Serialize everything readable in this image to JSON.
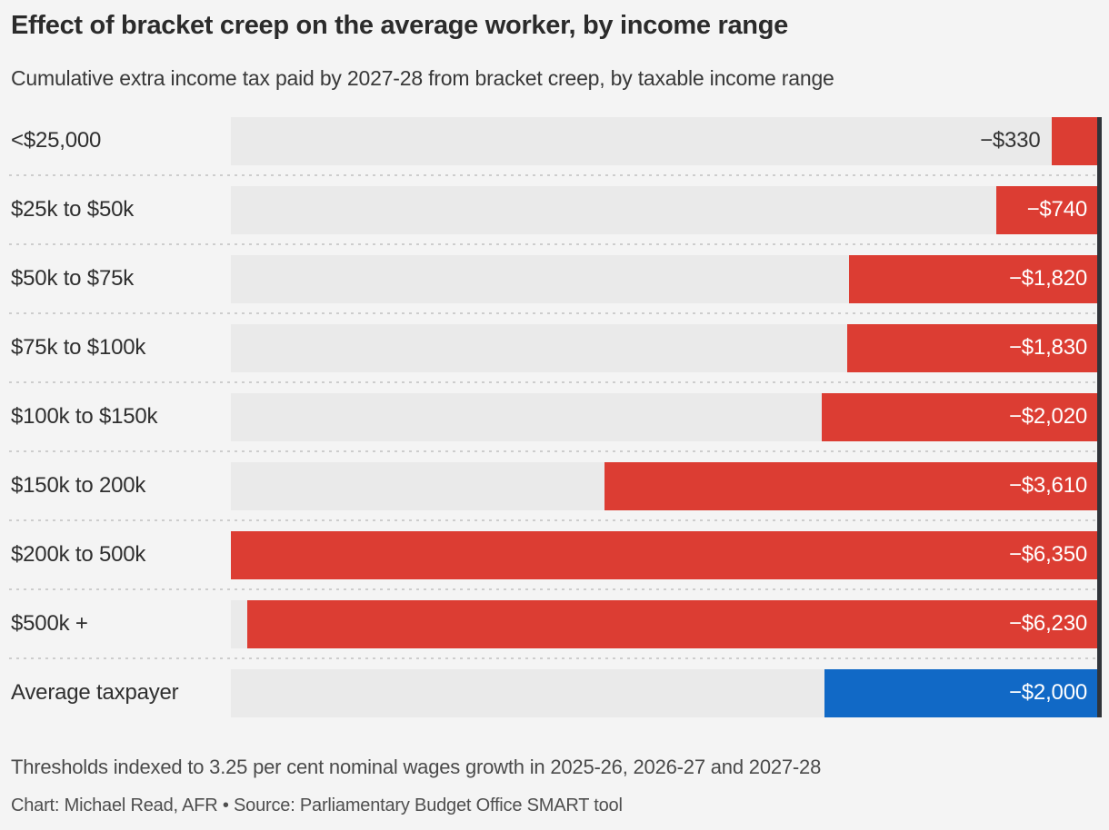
{
  "header": {
    "title": "Effect of bracket creep on the average worker, by income range",
    "subtitle": "Cumulative extra income tax paid by 2027-28 from bracket creep, by taxable income range"
  },
  "chart_data": {
    "type": "bar",
    "orientation": "horizontal",
    "bars_anchored": "right",
    "xlim": [
      0,
      6350
    ],
    "categories": [
      "<$25,000",
      "$25k to $50k",
      "$50k to $75k",
      "$75k to $100k",
      "$100k to $150k",
      "$150k to 200k",
      "$200k to 500k",
      "$500k +",
      "Average taxpayer"
    ],
    "values": [
      -330,
      -740,
      -1820,
      -1830,
      -2020,
      -3610,
      -6350,
      -6230,
      -2000
    ],
    "value_labels": [
      "−$330",
      "−$740",
      "−$1,820",
      "−$1,830",
      "−$2,020",
      "−$3,610",
      "−$6,350",
      "−$6,230",
      "−$2,000"
    ],
    "highlight_category": "Average taxpayer",
    "grid": "dotted-row-separators",
    "legend": "none"
  },
  "colors": {
    "bar_default": "#dc3d33",
    "bar_highlight": "#1169c6",
    "track": "#eaeaea",
    "axis_line": "#30343a",
    "background": "#f4f4f4",
    "value_label_inside": "#ffffff",
    "value_label_outside": "#333333"
  },
  "footer": {
    "note": "Thresholds indexed to 3.25 per cent nominal wages growth in 2025-26, 2026-27 and 2027-28",
    "credit": "Chart: Michael Read, AFR • Source: Parliamentary Budget Office SMART tool"
  }
}
